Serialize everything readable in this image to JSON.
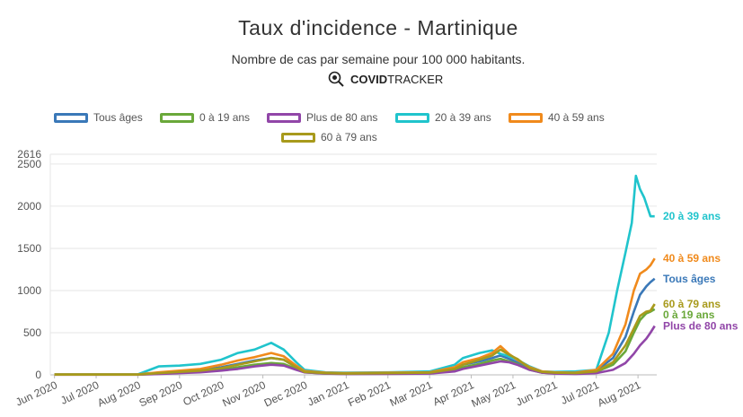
{
  "header": {
    "title": "Taux d'incidence - Martinique",
    "subtitle": "Nombre de cas par semaine pour 100 000 habitants.",
    "brand_bold": "COVID",
    "brand_light": "TRACKER"
  },
  "chart_data": {
    "type": "line",
    "title": "Taux d'incidence - Martinique",
    "subtitle": "Nombre de cas par semaine pour 100 000 habitants.",
    "xlabel": "",
    "ylabel": "",
    "ylim": [
      0,
      2616
    ],
    "y_ticks": [
      0,
      500,
      1000,
      1500,
      2000,
      2500,
      2616
    ],
    "x_tick_labels": [
      "Jun 2020",
      "Jul 2020",
      "Aug 2020",
      "Sep 2020",
      "Oct 2020",
      "Nov 2020",
      "Dec 2020",
      "Jan 2021",
      "Feb 2021",
      "Mar 2021",
      "Apr 2021",
      "May 2021",
      "Jun 2021",
      "Jul 2021",
      "Aug 2021"
    ],
    "x_tick_positions": [
      0,
      1,
      2,
      3,
      4,
      5,
      6,
      7,
      8,
      9,
      10,
      11,
      12,
      13,
      14
    ],
    "x_range": [
      -0.1,
      14.45
    ],
    "grid": true,
    "legend_position": "top",
    "series": [
      {
        "name": "Tous âges",
        "color": "#3a78b8",
        "x": [
          0,
          1,
          2,
          2.5,
          3,
          3.5,
          4,
          4.4,
          4.8,
          5.2,
          5.5,
          5.8,
          6,
          6.5,
          7,
          8,
          9,
          9.6,
          9.8,
          10.2,
          10.5,
          10.7,
          10.9,
          11.1,
          11.4,
          11.7,
          12,
          12.5,
          13,
          13.4,
          13.7,
          13.9,
          14.05,
          14.2,
          14.3,
          14.4
        ],
        "values": [
          5,
          5,
          5,
          25,
          40,
          55,
          90,
          130,
          170,
          200,
          180,
          90,
          40,
          20,
          15,
          20,
          25,
          70,
          120,
          160,
          200,
          230,
          190,
          150,
          80,
          35,
          25,
          20,
          50,
          200,
          450,
          750,
          950,
          1050,
          1100,
          1140
        ]
      },
      {
        "name": "0 à 19 ans",
        "color": "#6aa83a",
        "x": [
          0,
          1,
          2,
          2.5,
          3,
          3.5,
          4,
          4.4,
          4.8,
          5.2,
          5.5,
          5.8,
          6,
          6.5,
          7,
          8,
          9,
          9.6,
          9.8,
          10.2,
          10.5,
          10.7,
          10.9,
          11.1,
          11.4,
          11.7,
          12,
          12.5,
          13,
          13.4,
          13.7,
          13.9,
          14.05,
          14.2,
          14.3,
          14.4
        ],
        "values": [
          3,
          3,
          3,
          15,
          25,
          35,
          60,
          90,
          120,
          140,
          130,
          70,
          30,
          15,
          12,
          15,
          20,
          50,
          90,
          130,
          170,
          190,
          160,
          130,
          60,
          25,
          18,
          15,
          35,
          120,
          280,
          500,
          650,
          730,
          750,
          780
        ]
      },
      {
        "name": "Plus de 80 ans",
        "color": "#9146a8",
        "x": [
          0,
          1,
          2,
          2.5,
          3,
          3.5,
          4,
          4.4,
          4.8,
          5.2,
          5.5,
          5.8,
          6,
          6.5,
          7,
          8,
          9,
          9.6,
          9.8,
          10.2,
          10.5,
          10.7,
          10.9,
          11.1,
          11.4,
          11.7,
          12,
          12.5,
          13,
          13.4,
          13.7,
          13.9,
          14.05,
          14.2,
          14.3,
          14.4
        ],
        "values": [
          2,
          2,
          2,
          10,
          20,
          30,
          50,
          70,
          100,
          120,
          110,
          60,
          30,
          15,
          10,
          12,
          15,
          40,
          70,
          110,
          140,
          160,
          150,
          120,
          60,
          25,
          15,
          10,
          20,
          60,
          140,
          250,
          350,
          430,
          500,
          580
        ]
      },
      {
        "name": "20 à 39 ans",
        "color": "#20c4cc",
        "x": [
          0,
          1,
          2,
          2.5,
          3,
          3.5,
          4,
          4.4,
          4.8,
          5.2,
          5.5,
          5.8,
          6,
          6.5,
          7,
          8,
          9,
          9.6,
          9.8,
          10.2,
          10.5,
          10.7,
          10.9,
          11.1,
          11.4,
          11.7,
          12,
          12.5,
          13,
          13.3,
          13.5,
          13.7,
          13.85,
          13.95,
          14.05,
          14.15,
          14.3,
          14.4
        ],
        "values": [
          5,
          5,
          5,
          100,
          110,
          130,
          180,
          260,
          300,
          380,
          300,
          150,
          60,
          30,
          25,
          30,
          40,
          120,
          200,
          260,
          290,
          250,
          220,
          180,
          100,
          40,
          35,
          40,
          60,
          500,
          1000,
          1450,
          1800,
          2360,
          2200,
          2100,
          1880,
          1880
        ]
      },
      {
        "name": "40 à 59 ans",
        "color": "#f08a1c",
        "x": [
          0,
          1,
          2,
          2.5,
          3,
          3.5,
          4,
          4.4,
          4.8,
          5.2,
          5.5,
          5.8,
          6,
          6.5,
          7,
          8,
          9,
          9.6,
          9.8,
          10.2,
          10.5,
          10.7,
          10.9,
          11.1,
          11.4,
          11.7,
          12,
          12.5,
          13,
          13.4,
          13.7,
          13.9,
          14.05,
          14.2,
          14.3,
          14.4
        ],
        "values": [
          5,
          5,
          5,
          30,
          50,
          70,
          120,
          170,
          210,
          260,
          220,
          110,
          45,
          25,
          20,
          25,
          30,
          90,
          150,
          200,
          260,
          340,
          250,
          180,
          90,
          40,
          30,
          25,
          60,
          250,
          600,
          1000,
          1200,
          1250,
          1300,
          1380
        ]
      },
      {
        "name": "60 à 79 ans",
        "color": "#a89a1c",
        "x": [
          0,
          1,
          2,
          2.5,
          3,
          3.5,
          4,
          4.4,
          4.8,
          5.2,
          5.5,
          5.8,
          6,
          6.5,
          7,
          8,
          9,
          9.6,
          9.8,
          10.2,
          10.5,
          10.7,
          10.9,
          11.1,
          11.4,
          11.7,
          12,
          12.5,
          13,
          13.4,
          13.7,
          13.9,
          14.05,
          14.2,
          14.3,
          14.4
        ],
        "values": [
          3,
          3,
          3,
          20,
          35,
          50,
          80,
          120,
          160,
          200,
          180,
          90,
          35,
          20,
          15,
          20,
          25,
          70,
          120,
          180,
          230,
          300,
          240,
          190,
          80,
          35,
          25,
          20,
          40,
          150,
          350,
          550,
          700,
          750,
          760,
          840
        ]
      }
    ],
    "end_labels": [
      {
        "series": "20 à 39 ans",
        "text": "20 à 39 ans"
      },
      {
        "series": "40 à 59 ans",
        "text": "40 à 59 ans"
      },
      {
        "series": "Tous âges",
        "text": "Tous âges"
      },
      {
        "series": "60 à 79 ans",
        "text": "60 à 79 ans"
      },
      {
        "series": "0 à 19 ans",
        "text": "0 à 19 ans"
      },
      {
        "series": "Plus de 80 ans",
        "text": "Plus de 80 ans"
      }
    ]
  }
}
